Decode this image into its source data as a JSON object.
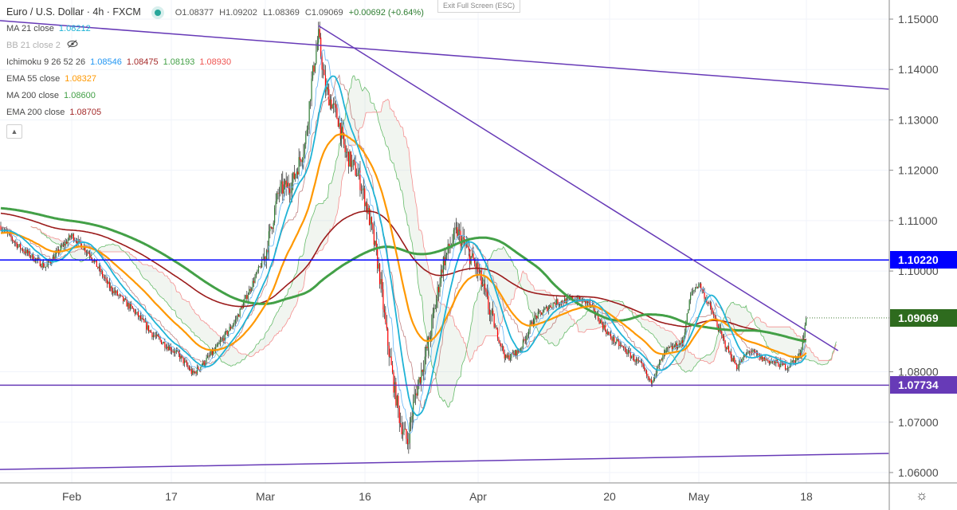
{
  "header": {
    "symbol": "Euro / U.S. Dollar · 4h · FXCM",
    "open": "O1.08377",
    "high": "H1.09202",
    "low": "L1.08369",
    "close": "C1.09069",
    "change": "+0.00692 (+0.64%)",
    "exit_fullscreen": "Exit Full Screen (ESC)"
  },
  "indicators": [
    {
      "label": "MA 21 close",
      "value": "1.08212",
      "color": "#1fb3d6"
    },
    {
      "label": "BB 21 close 2",
      "value": "",
      "hidden": true,
      "icon": "eye-crossed-icon"
    },
    {
      "label": "Ichimoku 9 26 52 26",
      "values": [
        "1.08546",
        "1.08475",
        "1.08193",
        "1.08930"
      ],
      "colors": [
        "#2196f3",
        "#a52a2a",
        "#43a047",
        "#ef5350"
      ]
    },
    {
      "label": "EMA 55 close",
      "value": "1.08327",
      "color": "#ff9800"
    },
    {
      "label": "MA 200 close",
      "value": "1.08600",
      "color": "#43a047"
    },
    {
      "label": "EMA 200 close",
      "value": "1.08705",
      "color": "#a52a2a"
    }
  ],
  "settings_icon": "gear-icon",
  "chart_data": {
    "type": "candlestick",
    "ylim": [
      1.0585,
      1.1535
    ],
    "y_ticks": [
      "1.15000",
      "1.14000",
      "1.13000",
      "1.12000",
      "1.11000",
      "1.10000",
      "1.08000",
      "1.07000",
      "1.06000"
    ],
    "y_tick_values": [
      1.15,
      1.14,
      1.13,
      1.12,
      1.11,
      1.1,
      1.08,
      1.07,
      1.06
    ],
    "x_ticks": [
      "Feb",
      "17",
      "Mar",
      "16",
      "Apr",
      "20",
      "May",
      "18"
    ],
    "x_tick_dates": [
      "2020-02-01",
      "2020-02-17",
      "2020-03-01",
      "2020-03-16",
      "2020-04-01",
      "2020-04-20",
      "2020-05-01",
      "2020-05-18"
    ],
    "grid": true,
    "colors": {
      "up": "#2e7d32",
      "down": "#ff0000",
      "wick": "#000000"
    },
    "approx_closes": [
      [
        "2020-01-21",
        1.109
      ],
      [
        "2020-01-24",
        1.1047
      ],
      [
        "2020-01-28",
        1.1008
      ],
      [
        "2020-02-01",
        1.1071
      ],
      [
        "2020-02-04",
        1.1032
      ],
      [
        "2020-02-07",
        1.0969
      ],
      [
        "2020-02-11",
        1.0921
      ],
      [
        "2020-02-14",
        1.0874
      ],
      [
        "2020-02-18",
        1.0834
      ],
      [
        "2020-02-20",
        1.0795
      ],
      [
        "2020-02-23",
        1.0842
      ],
      [
        "2020-02-26",
        1.0905
      ],
      [
        "2020-03-01",
        1.1032
      ],
      [
        "2020-03-03",
        1.1158
      ],
      [
        "2020-03-05",
        1.1174
      ],
      [
        "2020-03-07",
        1.1253
      ],
      [
        "2020-03-08",
        1.138
      ],
      [
        "2020-03-09",
        1.1467
      ],
      [
        "2020-03-10",
        1.1364
      ],
      [
        "2020-03-12",
        1.13
      ],
      [
        "2020-03-13",
        1.1237
      ],
      [
        "2020-03-15",
        1.119
      ],
      [
        "2020-03-16",
        1.1143
      ],
      [
        "2020-03-17",
        1.1079
      ],
      [
        "2020-03-18",
        1.1
      ],
      [
        "2020-03-19",
        1.088
      ],
      [
        "2020-03-20",
        1.078
      ],
      [
        "2020-03-21",
        1.07
      ],
      [
        "2020-03-22",
        1.066
      ],
      [
        "2020-03-23",
        1.0747
      ],
      [
        "2020-03-25",
        1.0858
      ],
      [
        "2020-03-26",
        1.0937
      ],
      [
        "2020-03-27",
        1.1016
      ],
      [
        "2020-03-29",
        1.1079
      ],
      [
        "2020-04-01",
        1.1
      ],
      [
        "2020-04-03",
        1.0905
      ],
      [
        "2020-04-05",
        1.0826
      ],
      [
        "2020-04-07",
        1.0842
      ],
      [
        "2020-04-09",
        1.0905
      ],
      [
        "2020-04-12",
        1.0937
      ],
      [
        "2020-04-15",
        1.0945
      ],
      [
        "2020-04-17",
        1.0937
      ],
      [
        "2020-04-20",
        1.087
      ],
      [
        "2020-04-22",
        1.0842
      ],
      [
        "2020-04-24",
        1.081
      ],
      [
        "2020-04-25",
        1.0779
      ],
      [
        "2020-04-27",
        1.0842
      ],
      [
        "2020-04-29",
        1.0858
      ],
      [
        "2020-04-30",
        1.0953
      ],
      [
        "2020-05-01",
        1.0976
      ],
      [
        "2020-05-03",
        1.0921
      ],
      [
        "2020-05-05",
        1.0858
      ],
      [
        "2020-05-07",
        1.081
      ],
      [
        "2020-05-09",
        1.0842
      ],
      [
        "2020-05-11",
        1.0826
      ],
      [
        "2020-05-13",
        1.0818
      ],
      [
        "2020-05-15",
        1.081
      ],
      [
        "2020-05-17",
        1.0834
      ],
      [
        "2020-05-18",
        1.0907
      ]
    ],
    "horizontal_lines": [
      {
        "price": 1.1022,
        "label": "1.10220",
        "color": "#0000ff"
      },
      {
        "price": 1.07734,
        "label": "1.07734",
        "color": "#673ab7"
      }
    ],
    "last_price": {
      "label": "1.09069",
      "price": 1.09069,
      "color": "#2e6b1e"
    },
    "trendlines": [
      {
        "from": [
          "2020-01-21",
          1.1497
        ],
        "to": [
          "2020-05-31",
          1.1361
        ],
        "color": "#673ab7"
      },
      {
        "from": [
          "2020-03-09",
          1.1487
        ],
        "to": [
          "2020-05-23",
          1.0842
        ],
        "color": "#673ab7"
      },
      {
        "from": [
          "2020-01-21",
          1.0606
        ],
        "to": [
          "2020-05-31",
          1.0638
        ],
        "color": "#673ab7"
      }
    ]
  }
}
